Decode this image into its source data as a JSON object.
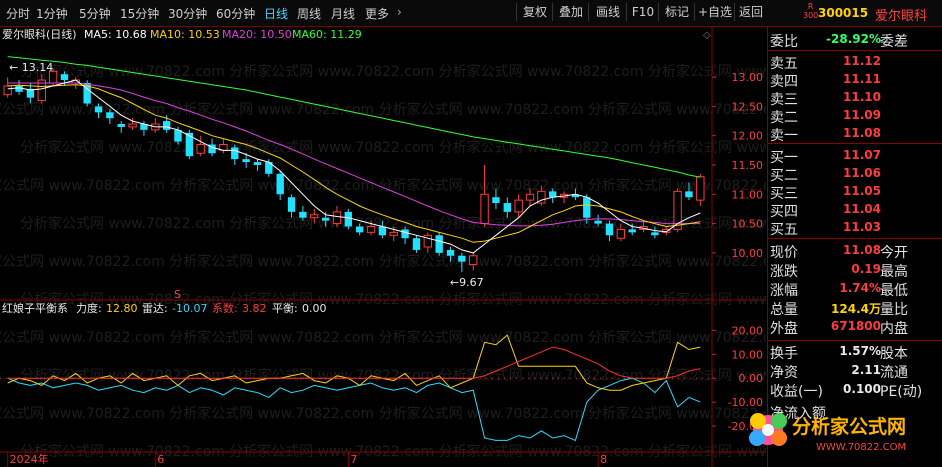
{
  "toolbar": {
    "periods": [
      "分时",
      "1分钟",
      "5分钟",
      "15分钟",
      "30分钟",
      "60分钟",
      "日线",
      "周线",
      "月线",
      "更多"
    ],
    "active_period": "日线",
    "buttons": [
      "复权",
      "叠加",
      "画线",
      "F10",
      "标记",
      "+自选",
      "返回"
    ]
  },
  "stock": {
    "code": "300015",
    "name": "爱尔眼科",
    "badge_top": "R",
    "badge_bottom": "300"
  },
  "main_chart": {
    "legend": {
      "title": "爱尔眼科(日线)",
      "ma5": "MA5: 10.68",
      "ma10": "MA10: 10.53",
      "ma20": "MA20: 10.50",
      "ma60": "MA60: 11.29"
    },
    "y_ticks": [
      "13.00",
      "12.50",
      "12.00",
      "11.50",
      "11.00",
      "10.50",
      "10.00"
    ],
    "high_label": "13.14",
    "low_label": "9.67",
    "s_marker": "S",
    "colors": {
      "up": "#ff3c3c",
      "down": "#22e0ff",
      "ma5": "#ffffff",
      "ma10": "#ffd400",
      "ma20": "#e040e0",
      "ma60": "#33ff33"
    }
  },
  "chart_data": {
    "type": "candlestick",
    "ylim": [
      9.4,
      13.6
    ],
    "candles": [
      {
        "o": 12.7,
        "c": 12.85,
        "h": 13.0,
        "l": 12.65
      },
      {
        "o": 12.85,
        "c": 12.75,
        "h": 12.95,
        "l": 12.7
      },
      {
        "o": 12.8,
        "c": 12.65,
        "h": 12.9,
        "l": 12.55
      },
      {
        "o": 12.6,
        "c": 12.95,
        "h": 13.05,
        "l": 12.55
      },
      {
        "o": 12.9,
        "c": 13.1,
        "h": 13.14,
        "l": 12.85
      },
      {
        "o": 13.05,
        "c": 12.95,
        "h": 13.1,
        "l": 12.85
      },
      {
        "o": 12.9,
        "c": 12.95,
        "h": 13.0,
        "l": 12.8
      },
      {
        "o": 12.9,
        "c": 12.55,
        "h": 12.95,
        "l": 12.5
      },
      {
        "o": 12.5,
        "c": 12.4,
        "h": 12.55,
        "l": 12.3
      },
      {
        "o": 12.4,
        "c": 12.3,
        "h": 12.45,
        "l": 12.2
      },
      {
        "o": 12.2,
        "c": 12.15,
        "h": 12.25,
        "l": 12.05
      },
      {
        "o": 12.15,
        "c": 12.2,
        "h": 12.3,
        "l": 12.1
      },
      {
        "o": 12.2,
        "c": 12.1,
        "h": 12.25,
        "l": 12.0
      },
      {
        "o": 12.1,
        "c": 12.2,
        "h": 12.3,
        "l": 12.05
      },
      {
        "o": 12.25,
        "c": 12.1,
        "h": 12.35,
        "l": 12.05
      },
      {
        "o": 12.1,
        "c": 11.9,
        "h": 12.15,
        "l": 11.85
      },
      {
        "o": 12.05,
        "c": 11.65,
        "h": 12.1,
        "l": 11.6
      },
      {
        "o": 11.7,
        "c": 11.85,
        "h": 12.0,
        "l": 11.65
      },
      {
        "o": 11.85,
        "c": 11.7,
        "h": 11.95,
        "l": 11.65
      },
      {
        "o": 11.75,
        "c": 11.85,
        "h": 11.95,
        "l": 11.7
      },
      {
        "o": 11.8,
        "c": 11.6,
        "h": 11.85,
        "l": 11.5
      },
      {
        "o": 11.6,
        "c": 11.55,
        "h": 11.7,
        "l": 11.45
      },
      {
        "o": 11.55,
        "c": 11.5,
        "h": 11.6,
        "l": 11.4
      },
      {
        "o": 11.55,
        "c": 11.35,
        "h": 11.6,
        "l": 11.3
      },
      {
        "o": 11.35,
        "c": 11.0,
        "h": 11.4,
        "l": 10.9
      },
      {
        "o": 10.95,
        "c": 10.7,
        "h": 11.0,
        "l": 10.6
      },
      {
        "o": 10.7,
        "c": 10.6,
        "h": 10.8,
        "l": 10.55
      },
      {
        "o": 10.6,
        "c": 10.65,
        "h": 10.75,
        "l": 10.5
      },
      {
        "o": 10.6,
        "c": 10.55,
        "h": 10.7,
        "l": 10.45
      },
      {
        "o": 10.5,
        "c": 10.7,
        "h": 10.8,
        "l": 10.45
      },
      {
        "o": 10.7,
        "c": 10.45,
        "h": 10.75,
        "l": 10.4
      },
      {
        "o": 10.45,
        "c": 10.35,
        "h": 10.5,
        "l": 10.3
      },
      {
        "o": 10.35,
        "c": 10.45,
        "h": 10.55,
        "l": 10.3
      },
      {
        "o": 10.45,
        "c": 10.3,
        "h": 10.55,
        "l": 10.25
      },
      {
        "o": 10.3,
        "c": 10.35,
        "h": 10.45,
        "l": 10.2
      },
      {
        "o": 10.4,
        "c": 10.25,
        "h": 10.45,
        "l": 10.15
      },
      {
        "o": 10.25,
        "c": 10.05,
        "h": 10.3,
        "l": 10.0
      },
      {
        "o": 10.1,
        "c": 10.3,
        "h": 10.35,
        "l": 10.0
      },
      {
        "o": 10.3,
        "c": 10.0,
        "h": 10.35,
        "l": 9.95
      },
      {
        "o": 10.05,
        "c": 9.95,
        "h": 10.1,
        "l": 9.85
      },
      {
        "o": 9.95,
        "c": 9.85,
        "h": 10.0,
        "l": 9.67
      },
      {
        "o": 9.8,
        "c": 9.95,
        "h": 10.0,
        "l": 9.7
      },
      {
        "o": 10.5,
        "c": 11.0,
        "h": 11.5,
        "l": 10.45
      },
      {
        "o": 10.95,
        "c": 10.85,
        "h": 11.1,
        "l": 10.75
      },
      {
        "o": 10.85,
        "c": 10.7,
        "h": 10.95,
        "l": 10.6
      },
      {
        "o": 10.7,
        "c": 10.9,
        "h": 11.0,
        "l": 10.6
      },
      {
        "o": 10.9,
        "c": 11.0,
        "h": 11.1,
        "l": 10.8
      },
      {
        "o": 10.85,
        "c": 11.05,
        "h": 11.15,
        "l": 10.8
      },
      {
        "o": 11.05,
        "c": 10.95,
        "h": 11.1,
        "l": 10.85
      },
      {
        "o": 10.95,
        "c": 11.0,
        "h": 11.05,
        "l": 10.85
      },
      {
        "o": 11.0,
        "c": 10.95,
        "h": 11.1,
        "l": 10.9
      },
      {
        "o": 10.95,
        "c": 10.6,
        "h": 11.0,
        "l": 10.5
      },
      {
        "o": 10.55,
        "c": 10.5,
        "h": 10.65,
        "l": 10.45
      },
      {
        "o": 10.5,
        "c": 10.3,
        "h": 10.55,
        "l": 10.2
      },
      {
        "o": 10.25,
        "c": 10.4,
        "h": 10.5,
        "l": 10.2
      },
      {
        "o": 10.4,
        "c": 10.35,
        "h": 10.5,
        "l": 10.3
      },
      {
        "o": 10.4,
        "c": 10.45,
        "h": 10.55,
        "l": 10.35
      },
      {
        "o": 10.35,
        "c": 10.3,
        "h": 10.45,
        "l": 10.25
      },
      {
        "o": 10.35,
        "c": 10.4,
        "h": 10.45,
        "l": 10.3
      },
      {
        "o": 10.4,
        "c": 11.05,
        "h": 11.1,
        "l": 10.35
      },
      {
        "o": 11.05,
        "c": 10.95,
        "h": 11.2,
        "l": 10.9
      },
      {
        "o": 10.9,
        "c": 11.3,
        "h": 11.35,
        "l": 10.8
      }
    ],
    "ma5": [
      12.8,
      12.82,
      12.78,
      12.8,
      12.85,
      12.9,
      12.95,
      12.8,
      12.65,
      12.5,
      12.35,
      12.25,
      12.2,
      12.15,
      12.15,
      12.1,
      12.0,
      11.9,
      11.8,
      11.75,
      11.75,
      11.68,
      11.6,
      11.55,
      11.4,
      11.2,
      11.0,
      10.8,
      10.65,
      10.62,
      10.6,
      10.55,
      10.5,
      10.45,
      10.4,
      10.35,
      10.3,
      10.25,
      10.2,
      10.15,
      10.05,
      10.0,
      10.15,
      10.3,
      10.45,
      10.6,
      10.8,
      10.9,
      10.95,
      10.97,
      11.0,
      10.95,
      10.85,
      10.7,
      10.55,
      10.45,
      10.42,
      10.38,
      10.36,
      10.5,
      10.6,
      10.68
    ],
    "ma10": [
      12.85,
      12.86,
      12.85,
      12.84,
      12.85,
      12.86,
      12.87,
      12.85,
      12.8,
      12.72,
      12.65,
      12.55,
      12.45,
      12.35,
      12.3,
      12.22,
      12.15,
      12.08,
      12.0,
      11.95,
      11.9,
      11.85,
      11.78,
      11.7,
      11.62,
      11.5,
      11.38,
      11.25,
      11.12,
      11.0,
      10.9,
      10.8,
      10.72,
      10.65,
      10.58,
      10.52,
      10.45,
      10.4,
      10.35,
      10.3,
      10.25,
      10.18,
      10.2,
      10.25,
      10.3,
      10.35,
      10.45,
      10.55,
      10.65,
      10.72,
      10.8,
      10.82,
      10.8,
      10.75,
      10.7,
      10.62,
      10.55,
      10.5,
      10.45,
      10.47,
      10.5,
      10.53
    ],
    "ma20": [
      12.9,
      12.9,
      12.9,
      12.9,
      12.9,
      12.9,
      12.9,
      12.88,
      12.85,
      12.82,
      12.78,
      12.72,
      12.66,
      12.6,
      12.55,
      12.48,
      12.42,
      12.35,
      12.28,
      12.22,
      12.15,
      12.08,
      12.0,
      11.92,
      11.85,
      11.77,
      11.69,
      11.6,
      11.52,
      11.44,
      11.36,
      11.28,
      11.2,
      11.12,
      11.04,
      10.96,
      10.88,
      10.8,
      10.72,
      10.65,
      10.58,
      10.52,
      10.5,
      10.48,
      10.47,
      10.46,
      10.46,
      10.47,
      10.49,
      10.52,
      10.55,
      10.57,
      10.58,
      10.58,
      10.57,
      10.55,
      10.53,
      10.52,
      10.5,
      10.5,
      10.5,
      10.5
    ],
    "ma60": [
      13.35,
      13.33,
      13.31,
      13.29,
      13.27,
      13.25,
      13.22,
      13.2,
      13.17,
      13.14,
      13.11,
      13.08,
      13.05,
      13.02,
      12.99,
      12.96,
      12.93,
      12.9,
      12.87,
      12.84,
      12.81,
      12.78,
      12.74,
      12.7,
      12.66,
      12.62,
      12.58,
      12.54,
      12.5,
      12.46,
      12.42,
      12.38,
      12.34,
      12.3,
      12.26,
      12.22,
      12.18,
      12.14,
      12.1,
      12.06,
      12.02,
      11.98,
      11.95,
      11.92,
      11.89,
      11.86,
      11.83,
      11.8,
      11.77,
      11.74,
      11.71,
      11.68,
      11.65,
      11.62,
      11.58,
      11.54,
      11.5,
      11.46,
      11.42,
      11.38,
      11.33,
      11.29
    ],
    "indicator": {
      "title": "红娘子平衡系",
      "lidu_label": "力度:",
      "lidu": "12.80",
      "leida_label": "雷达:",
      "leida": "-10.07",
      "xishu_label": "系数:",
      "xishu": "3.82",
      "pingheng_label": "平衡:",
      "pingheng": "0.00",
      "ylim": [
        -30,
        26
      ],
      "yticks": [
        "20.00",
        "10.00",
        "0.00",
        "-10.00",
        "-20.00"
      ],
      "yellow": [
        -2,
        0,
        -1,
        -3,
        1,
        -1,
        2,
        -2,
        0,
        1,
        -2,
        2,
        -1,
        0,
        1,
        -3,
        1,
        2,
        -1,
        0,
        1,
        -2,
        -1,
        0,
        0,
        1,
        2,
        -1,
        -2,
        1,
        0,
        -3,
        1,
        0,
        -1,
        2,
        -3,
        -1,
        1,
        -4,
        -2,
        0,
        15,
        14,
        18,
        5,
        5,
        5,
        5,
        5,
        5,
        -2,
        -4,
        -5,
        -5,
        -3,
        -2,
        -1,
        0,
        15,
        12,
        13
      ],
      "cyan": [
        0,
        -2,
        -3,
        -2,
        -4,
        -3,
        -2,
        -3,
        -5,
        -4,
        -3,
        -5,
        -6,
        -4,
        -5,
        -3,
        -6,
        -4,
        -5,
        -7,
        -4,
        -5,
        -6,
        -8,
        -4,
        -6,
        -5,
        -3,
        -4,
        -5,
        -4,
        -3,
        -2,
        -4,
        -5,
        -4,
        -6,
        -3,
        -2,
        -4,
        -6,
        -5,
        -25,
        -26,
        -26,
        -24,
        -25,
        -22,
        -25,
        -24,
        -26,
        -10,
        -5,
        -3,
        -1,
        0,
        -2,
        -6,
        -1,
        -12,
        -8,
        -10
      ],
      "red": [
        0,
        0,
        0,
        0,
        0,
        0,
        0,
        0,
        0,
        0,
        0,
        0,
        0,
        0,
        0,
        0,
        0,
        0,
        0,
        0,
        0,
        0,
        0,
        0,
        0,
        0,
        0,
        0,
        0,
        0,
        0,
        0,
        0,
        0,
        0,
        0,
        0,
        0,
        0,
        0,
        0,
        0,
        1,
        3,
        5,
        7,
        9,
        11,
        13,
        12,
        10,
        8,
        6,
        3,
        1,
        0,
        0,
        0,
        0,
        1,
        3,
        4
      ]
    },
    "x_labels": [
      {
        "i": 0,
        "t": "2024年"
      },
      {
        "i": 13,
        "t": "6"
      },
      {
        "i": 30,
        "t": "7"
      },
      {
        "i": 52,
        "t": "8"
      }
    ]
  },
  "quote": {
    "weibi_label": "委比",
    "weibi": "-28.92%",
    "weicha_label": "委差",
    "asks": [
      {
        "l": "卖五",
        "p": "11.12"
      },
      {
        "l": "卖四",
        "p": "11.11"
      },
      {
        "l": "卖三",
        "p": "11.10"
      },
      {
        "l": "卖二",
        "p": "11.09"
      },
      {
        "l": "卖一",
        "p": "11.08"
      }
    ],
    "bids": [
      {
        "l": "买一",
        "p": "11.07"
      },
      {
        "l": "买二",
        "p": "11.06"
      },
      {
        "l": "买三",
        "p": "11.05"
      },
      {
        "l": "买四",
        "p": "11.04"
      },
      {
        "l": "买五",
        "p": "11.03"
      }
    ],
    "stats": [
      {
        "l": "现价",
        "v": "11.08",
        "c": "red",
        "r": "今开"
      },
      {
        "l": "涨跌",
        "v": "0.19",
        "c": "red",
        "r": "最高"
      },
      {
        "l": "涨幅",
        "v": "1.74%",
        "c": "red",
        "r": "最低"
      },
      {
        "l": "总量",
        "v": "124.4万",
        "c": "yel",
        "r": "量比"
      },
      {
        "l": "外盘",
        "v": "671800",
        "c": "red",
        "r": "内盘"
      }
    ],
    "stats2": [
      {
        "l": "换手",
        "v": "1.57%",
        "c": "wht",
        "r": "股本"
      },
      {
        "l": "净资",
        "v": "2.11",
        "c": "wht",
        "r": "流通"
      },
      {
        "l": "收益(一)",
        "v": "0.100",
        "c": "wht",
        "r": "PE(动)"
      }
    ],
    "cut_label": "净流入额"
  },
  "watermark": {
    "text": "分析家公式网",
    "url": "WWW.70822.COM",
    "bg_text": "分析家公式网 www.70822.com"
  }
}
